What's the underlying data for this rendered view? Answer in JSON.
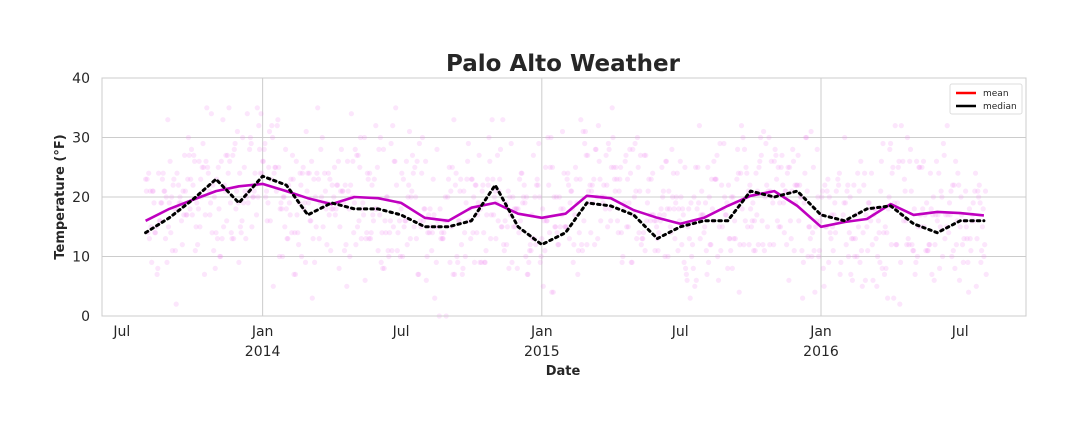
{
  "chart_data": {
    "type": "line",
    "title": "Palo Alto Weather",
    "xlabel": "Date",
    "ylabel": "Temperature (°F)",
    "ylim": [
      0,
      40
    ],
    "yticks": [
      0,
      10,
      20,
      30,
      40
    ],
    "xlim": [
      "2013-06-05",
      "2016-09-25"
    ],
    "xticks": [
      {
        "date": "2013-07-01",
        "label": "Jul",
        "year": ""
      },
      {
        "date": "2014-01-01",
        "label": "Jan",
        "year": "2014"
      },
      {
        "date": "2014-07-01",
        "label": "Jul",
        "year": ""
      },
      {
        "date": "2015-01-01",
        "label": "Jan",
        "year": "2015"
      },
      {
        "date": "2015-07-01",
        "label": "Jul",
        "year": ""
      },
      {
        "date": "2016-01-01",
        "label": "Jan",
        "year": "2016"
      },
      {
        "date": "2016-07-01",
        "label": "Jul",
        "year": ""
      }
    ],
    "grid": true,
    "legend": {
      "position": "top-right",
      "entries": [
        {
          "name": "mean",
          "color": "#ff0000"
        },
        {
          "name": "median",
          "color": "#000000"
        }
      ]
    },
    "series": [
      {
        "name": "mean",
        "style": "solid",
        "color": "#bf00bf",
        "points": [
          [
            "2013-08-01",
            16.0
          ],
          [
            "2013-09-01",
            18.0
          ],
          [
            "2013-10-01",
            19.5
          ],
          [
            "2013-11-01",
            21.0
          ],
          [
            "2013-12-01",
            21.8
          ],
          [
            "2014-01-01",
            22.2
          ],
          [
            "2014-02-01",
            21.0
          ],
          [
            "2014-03-01",
            19.8
          ],
          [
            "2014-04-01",
            18.8
          ],
          [
            "2014-05-01",
            20.0
          ],
          [
            "2014-06-01",
            19.8
          ],
          [
            "2014-07-01",
            19.0
          ],
          [
            "2014-08-01",
            16.5
          ],
          [
            "2014-09-01",
            16.0
          ],
          [
            "2014-10-01",
            18.2
          ],
          [
            "2014-11-01",
            19.0
          ],
          [
            "2014-12-01",
            17.2
          ],
          [
            "2015-01-01",
            16.5
          ],
          [
            "2015-02-01",
            17.2
          ],
          [
            "2015-03-01",
            20.2
          ],
          [
            "2015-04-01",
            19.8
          ],
          [
            "2015-05-01",
            17.8
          ],
          [
            "2015-06-01",
            16.5
          ],
          [
            "2015-07-01",
            15.5
          ],
          [
            "2015-08-01",
            16.5
          ],
          [
            "2015-09-01",
            18.5
          ],
          [
            "2015-10-01",
            20.2
          ],
          [
            "2015-11-01",
            21.0
          ],
          [
            "2015-12-01",
            18.5
          ],
          [
            "2016-01-01",
            15.0
          ],
          [
            "2016-02-01",
            15.8
          ],
          [
            "2016-03-01",
            16.3
          ],
          [
            "2016-04-01",
            18.8
          ],
          [
            "2016-05-01",
            17.0
          ],
          [
            "2016-06-01",
            17.5
          ],
          [
            "2016-07-01",
            17.3
          ],
          [
            "2016-08-01",
            16.9
          ]
        ]
      },
      {
        "name": "median",
        "style": "dotted",
        "color": "#000000",
        "points": [
          [
            "2013-08-01",
            14.0
          ],
          [
            "2013-09-01",
            16.5
          ],
          [
            "2013-10-01",
            19.5
          ],
          [
            "2013-11-01",
            23.0
          ],
          [
            "2013-12-01",
            19.0
          ],
          [
            "2014-01-01",
            23.5
          ],
          [
            "2014-02-01",
            22.0
          ],
          [
            "2014-03-01",
            17.0
          ],
          [
            "2014-04-01",
            19.0
          ],
          [
            "2014-05-01",
            18.0
          ],
          [
            "2014-06-01",
            18.0
          ],
          [
            "2014-07-01",
            17.0
          ],
          [
            "2014-08-01",
            15.0
          ],
          [
            "2014-09-01",
            15.0
          ],
          [
            "2014-10-01",
            16.0
          ],
          [
            "2014-11-01",
            22.0
          ],
          [
            "2014-12-01",
            15.0
          ],
          [
            "2015-01-01",
            12.0
          ],
          [
            "2015-02-01",
            14.0
          ],
          [
            "2015-03-01",
            19.0
          ],
          [
            "2015-04-01",
            18.5
          ],
          [
            "2015-05-01",
            17.0
          ],
          [
            "2015-06-01",
            13.0
          ],
          [
            "2015-07-01",
            15.0
          ],
          [
            "2015-08-01",
            16.0
          ],
          [
            "2015-09-01",
            16.0
          ],
          [
            "2015-10-01",
            21.0
          ],
          [
            "2015-11-01",
            20.0
          ],
          [
            "2015-12-01",
            21.0
          ],
          [
            "2016-01-01",
            17.0
          ],
          [
            "2016-02-01",
            16.0
          ],
          [
            "2016-03-01",
            18.0
          ],
          [
            "2016-04-01",
            18.5
          ],
          [
            "2016-05-01",
            15.5
          ],
          [
            "2016-06-01",
            14.0
          ],
          [
            "2016-07-01",
            16.0
          ],
          [
            "2016-08-01",
            16.0
          ]
        ]
      }
    ],
    "scatter": {
      "name": "daily observations",
      "color": "#ee82ee",
      "opacity": 0.2,
      "start": "2013-08-01",
      "days": 1100,
      "spread": 6.5,
      "note": "individual daily temperature readings scattered around the monthly mean"
    }
  }
}
